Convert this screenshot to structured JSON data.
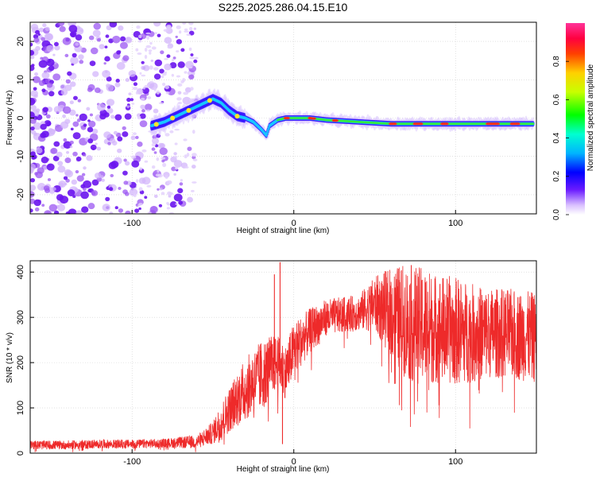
{
  "title": "S225.2025.286.04.15.E10",
  "colors": {
    "axis": "#000000",
    "snr_line": "#ee2a2a",
    "noise": "#7b2cf0"
  },
  "chart_data": [
    {
      "type": "heatmap",
      "xlabel": "Height of straight line (km)",
      "ylabel": "Frequency (Hz)",
      "xlim": [
        -163,
        150
      ],
      "ylim": [
        -25,
        25
      ],
      "xticks": [
        "-100",
        "0",
        "100"
      ],
      "yticks": [
        "-20",
        "-10",
        "0",
        "10",
        "20"
      ],
      "grid": true,
      "ridge": {
        "x": [
          -88,
          -80,
          -70,
          -60,
          -55,
          -50,
          -45,
          -40,
          -35,
          -30,
          -25,
          -20,
          -17,
          -15,
          -10,
          -5,
          0,
          10,
          20,
          40,
          60,
          80,
          100,
          120,
          148
        ],
        "freq": [
          -2,
          -1,
          1,
          3,
          4,
          5,
          4,
          2,
          0.5,
          0,
          -1,
          -3,
          -4.5,
          -2,
          -0.5,
          0,
          0,
          0,
          -0.5,
          -1,
          -1.5,
          -1.5,
          -1.5,
          -1.5,
          -1.5
        ]
      },
      "colorbar": {
        "label": "Normalized spectral amplitude",
        "ticks": [
          "0.0",
          "0.2",
          "0.4",
          "0.6",
          "0.8"
        ],
        "range": [
          0,
          1
        ]
      }
    },
    {
      "type": "line",
      "xlabel": "Height of straight line (km)",
      "ylabel": "SNR (10 * v/v)",
      "xlim": [
        -163,
        150
      ],
      "ylim": [
        0,
        425
      ],
      "xticks": [
        "-100",
        "0",
        "100"
      ],
      "yticks": [
        "0",
        "100",
        "200",
        "300",
        "400"
      ],
      "grid": true,
      "series": [
        {
          "x": [
            -163,
            -140,
            -120,
            -100,
            -80,
            -60,
            -50,
            -45,
            -40,
            -35,
            -30,
            -25,
            -20,
            -15,
            -10,
            -5,
            0,
            10,
            20,
            30,
            40,
            50,
            60,
            70,
            80,
            90,
            100,
            110,
            120,
            130,
            140,
            150
          ],
          "values": [
            18,
            18,
            20,
            20,
            22,
            25,
            45,
            70,
            95,
            120,
            140,
            160,
            170,
            190,
            200,
            180,
            230,
            270,
            300,
            305,
            310,
            330,
            310,
            290,
            280,
            275,
            270,
            265,
            265,
            265,
            260,
            255
          ],
          "spread": [
            10,
            10,
            10,
            10,
            10,
            15,
            25,
            40,
            50,
            60,
            70,
            70,
            80,
            70,
            60,
            60,
            60,
            50,
            40,
            40,
            40,
            60,
            100,
            130,
            130,
            120,
            120,
            110,
            100,
            100,
            100,
            100
          ],
          "peaks": [
            {
              "x": -8.5,
              "value": 422
            },
            {
              "x": -12,
              "value": 395
            },
            {
              "x": -7,
              "value": 20
            }
          ]
        }
      ]
    }
  ]
}
